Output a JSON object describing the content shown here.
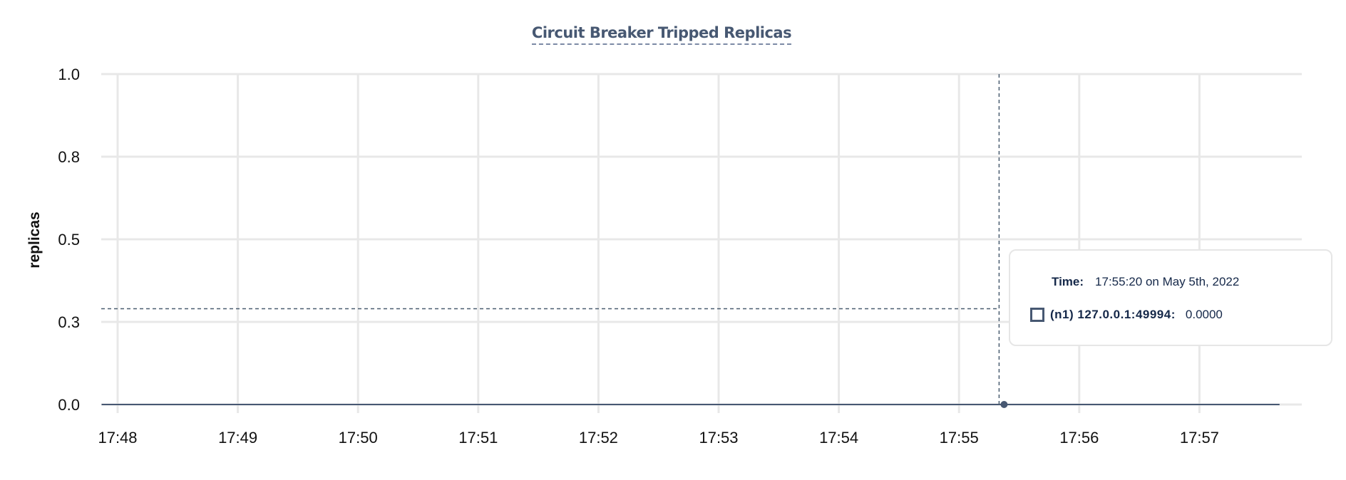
{
  "chart_data": {
    "type": "line",
    "title": "Circuit Breaker Tripped Replicas",
    "xlabel": "",
    "ylabel": "replicas",
    "ylim": [
      0,
      1
    ],
    "y_ticks": [
      0,
      0.25,
      0.5,
      0.75,
      1.0
    ],
    "y_tick_labels": [
      "0.0",
      "0.3",
      "0.5",
      "0.8",
      "1.0"
    ],
    "x_tick_labels": [
      "17:48",
      "17:49",
      "17:50",
      "17:51",
      "17:52",
      "17:53",
      "17:54",
      "17:55",
      "17:56",
      "17:57"
    ],
    "xlim": [
      "17:47:52",
      "17:58:45"
    ],
    "grid": true,
    "series": [
      {
        "name": "(n1) 127.0.0.1:49994",
        "color": "#475872",
        "x": [
          "17:47:52",
          "17:55:20",
          "17:57:40"
        ],
        "y": [
          0,
          0,
          0
        ]
      }
    ],
    "hover": {
      "x": "17:55:20",
      "y_cursor": 0.29
    }
  },
  "tooltip": {
    "time_label": "Time:",
    "time_value": "17:55:20 on May 5th, 2022",
    "series_label": "(n1) 127.0.0.1:49994:",
    "series_value": "0.0000"
  }
}
